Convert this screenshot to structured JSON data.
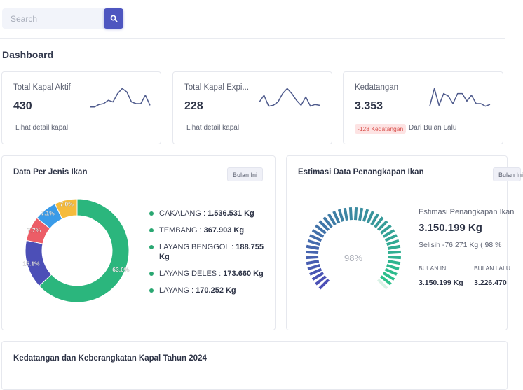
{
  "search": {
    "placeholder": "Search",
    "button_icon": "search-icon"
  },
  "page": {
    "title": "Dashboard"
  },
  "stats": [
    {
      "label": "Total Kapal Aktif",
      "value": "430",
      "link": "Lihat detail kapal",
      "spark": [
        6,
        6,
        9,
        10,
        14,
        12,
        22,
        28,
        24,
        12,
        10,
        10,
        20,
        8
      ]
    },
    {
      "label": "Total Kapal Expi...",
      "value": "228",
      "link": "Lihat detail kapal",
      "spark": [
        12,
        20,
        7,
        8,
        12,
        22,
        28,
        22,
        14,
        8,
        18,
        7,
        9,
        8
      ]
    },
    {
      "label": "Kedatangan",
      "value": "3.353",
      "badge": "-128 Kedatangan",
      "note": "Dari Bulan Lalu",
      "spark": [
        7,
        28,
        8,
        22,
        19,
        10,
        22,
        22,
        13,
        20,
        10,
        10,
        7,
        9
      ]
    }
  ],
  "fish_card": {
    "title": "Data Per Jenis Ikan",
    "filter": "Bulan Ini",
    "items": [
      {
        "name": "CAKALANG",
        "value": "1.536.531 Kg"
      },
      {
        "name": "TEMBANG",
        "value": "367.903 Kg"
      },
      {
        "name": "LAYANG BENGGOL",
        "value": "188.755 Kg"
      },
      {
        "name": "LAYANG DELES",
        "value": "173.660 Kg"
      },
      {
        "name": "LAYANG",
        "value": "170.252 Kg"
      }
    ],
    "chart_data": {
      "type": "pie",
      "categories": [
        "CAKALANG",
        "TEMBANG",
        "LAYANG BENGGOL",
        "LAYANG DELES",
        "LAYANG"
      ],
      "values": [
        63.0,
        15.1,
        7.7,
        7.1,
        7.0
      ],
      "labels": [
        "63.0%",
        "15.1%",
        "7.7%",
        "7.1%",
        "7.0%"
      ],
      "colors": [
        "#2bb67d",
        "#4c4fb7",
        "#ec5d67",
        "#3a9be8",
        "#f5bb3c"
      ]
    }
  },
  "estimate_card": {
    "title": "Estimasi Data Penangkapan Ikan",
    "filter": "Bulan Ini",
    "label": "Estimasi Penangkapan Ikan",
    "value": "3.150.199 Kg",
    "diff": "Selisih -76.271 Kg ( 98 %",
    "current_head": "BULAN INI",
    "current_value": "3.150.199 Kg",
    "previous_head": "BULAN LALU",
    "previous_value": "3.226.470",
    "gauge_percent": 98,
    "gauge_label": "98%",
    "gauge_from": "#4c4fb7",
    "gauge_to": "#2bc48a"
  },
  "bottom_card": {
    "title": "Kedatangan dan Keberangkatan Kapal Tahun 2024"
  }
}
